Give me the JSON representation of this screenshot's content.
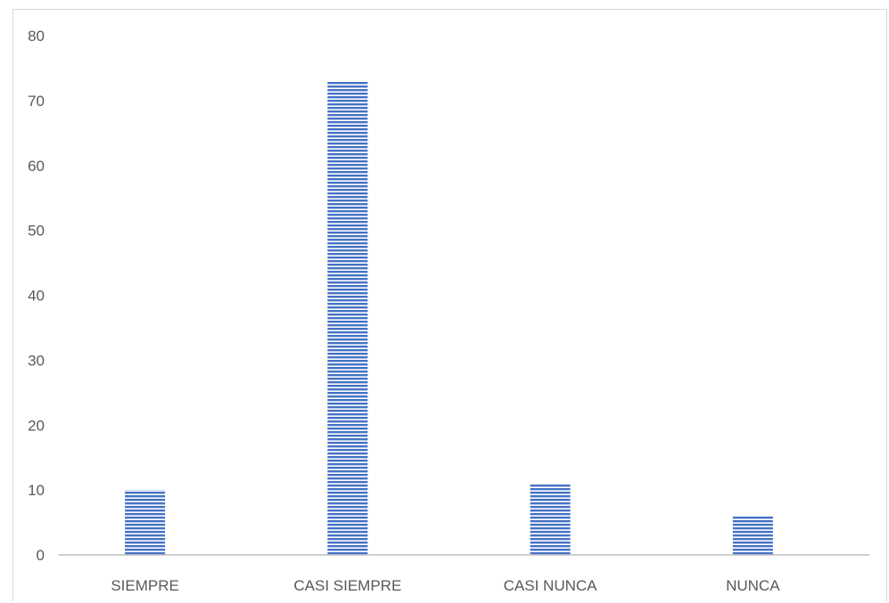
{
  "chart_data": {
    "type": "bar",
    "title": "",
    "xlabel": "",
    "ylabel": "",
    "categories": [
      "SIEMPRE",
      "CASI SIEMPRE",
      "CASI NUNCA",
      "NUNCA"
    ],
    "values": [
      10,
      73,
      11,
      6
    ],
    "ylim": [
      0,
      80
    ],
    "yticks": [
      0,
      10,
      20,
      30,
      40,
      50,
      60,
      70,
      80
    ],
    "ytick_labels": [
      "0",
      "10",
      "20",
      "30",
      "40",
      "50",
      "60",
      "70",
      "80"
    ],
    "grid": false,
    "legend": "none",
    "bar_color": "#4472C4",
    "bar_pattern": "horizontal-lines"
  }
}
